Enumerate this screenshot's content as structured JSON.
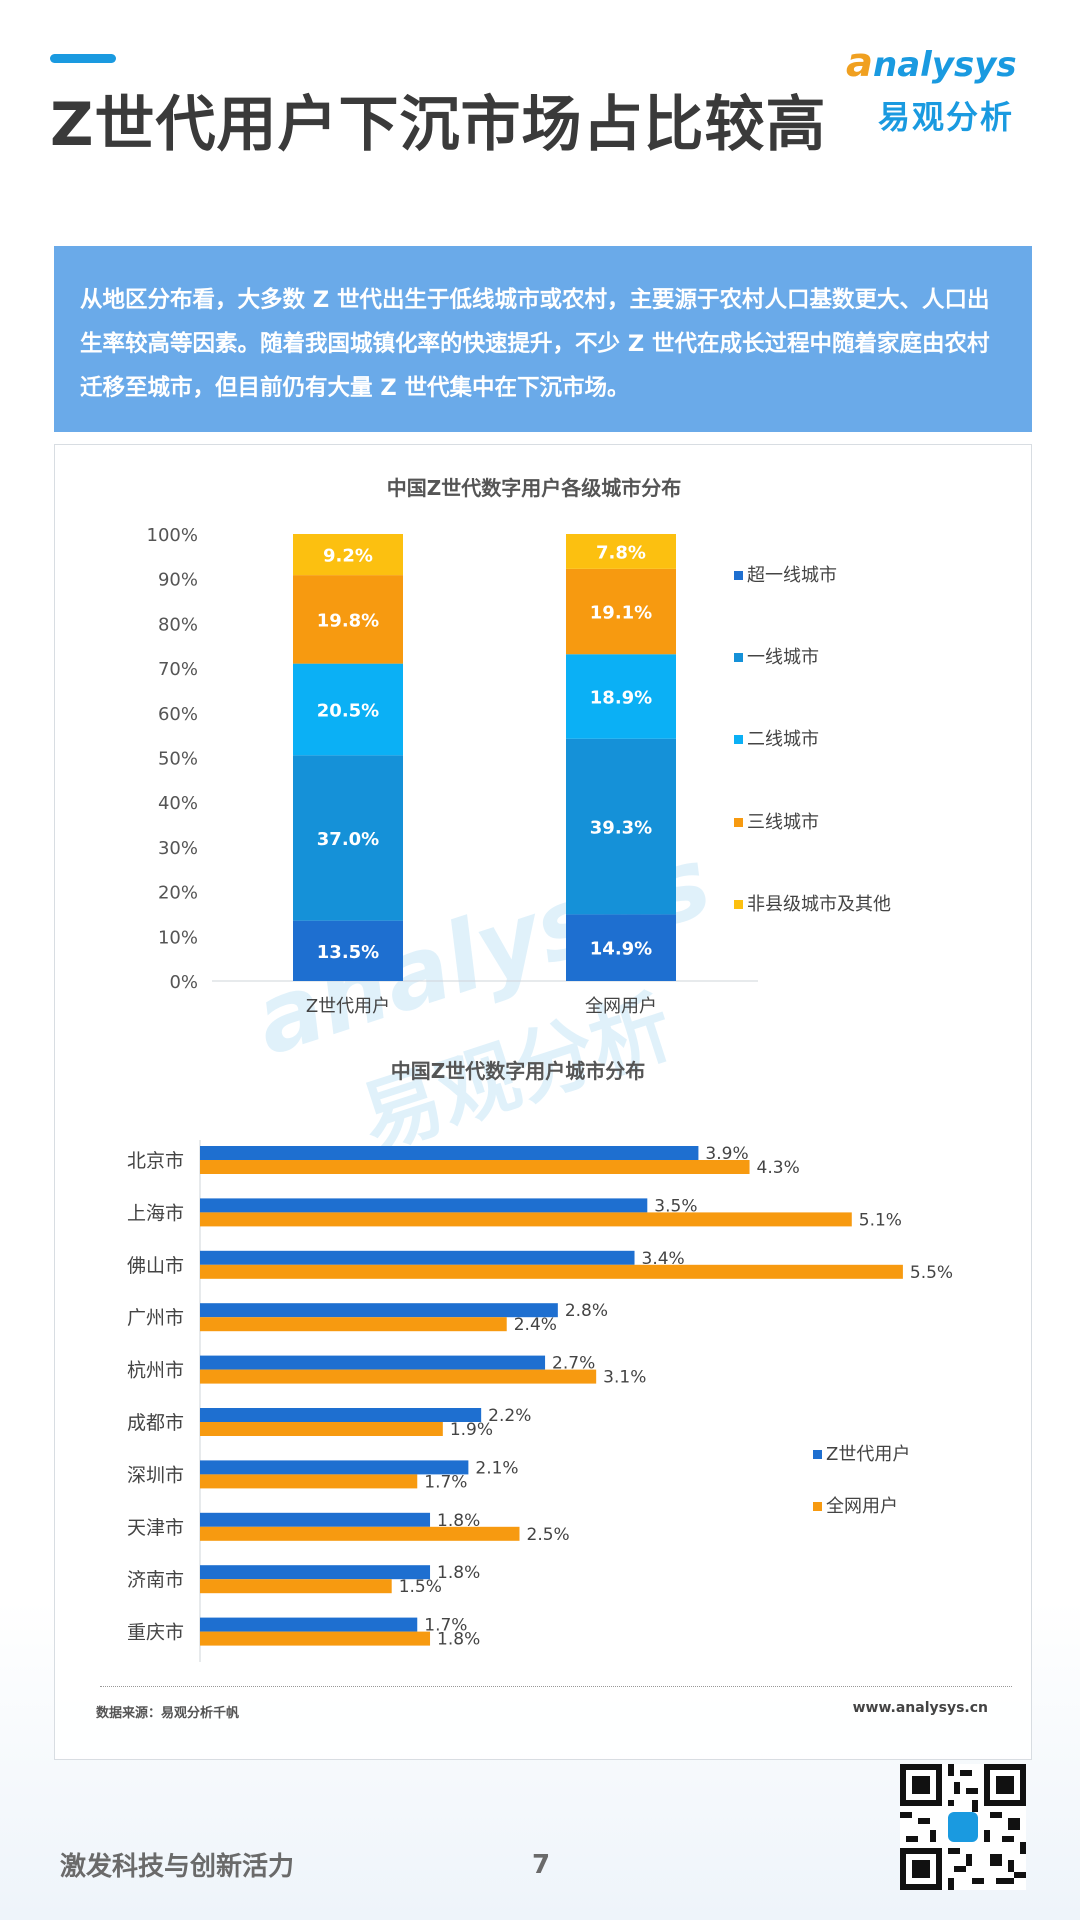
{
  "header": {
    "title": "Z世代用户下沉市场占比较高",
    "logo_en_lead": "a",
    "logo_en_rest": "nalysys",
    "logo_cn": "易观分析"
  },
  "intro": {
    "text": "从地区分布看，大多数 Z 世代出生于低线城市或农村，主要源于农村人口基数更大、人口出生率较高等因素。随着我国城镇化率的快速提升，不少 Z 世代在成长过程中随着家庭由农村迁移至城市，但目前仍有大量 Z 世代集中在下沉市场。"
  },
  "watermark": {
    "en": "analysys",
    "cn": "易观分析"
  },
  "colors": {
    "tier_super": "#1e6fd0",
    "tier_first": "#1591d8",
    "tier_second": "#0bb0f5",
    "tier_third": "#f79a10",
    "tier_other": "#fcc010",
    "genz": "#1e6fd0",
    "all": "#f79a10"
  },
  "chart_data": [
    {
      "type": "bar",
      "stacked": true,
      "title": "中国Z世代数字用户各级城市分布",
      "categories": [
        "Z世代用户",
        "全网用户"
      ],
      "series": [
        {
          "name": "超一线城市",
          "values": [
            13.5,
            14.9
          ]
        },
        {
          "name": "一线城市",
          "values": [
            37.0,
            39.3
          ]
        },
        {
          "name": "二线城市",
          "values": [
            20.5,
            18.9
          ]
        },
        {
          "name": "三线城市",
          "values": [
            19.8,
            19.1
          ]
        },
        {
          "name": "非县级城市及其他",
          "values": [
            9.2,
            7.8
          ]
        }
      ],
      "value_labels": [
        [
          "13.5%",
          "14.9%"
        ],
        [
          "37.0%",
          "39.3%"
        ],
        [
          "20.5%",
          "18.9%"
        ],
        [
          "19.8%",
          "19.1%"
        ],
        [
          "9.2%",
          "7.8%"
        ]
      ],
      "ylim": [
        0,
        100
      ],
      "yticks": [
        "0%",
        "10%",
        "20%",
        "30%",
        "40%",
        "50%",
        "60%",
        "70%",
        "80%",
        "90%",
        "100%"
      ],
      "legend_position": "right"
    },
    {
      "type": "bar",
      "orientation": "horizontal",
      "title": "中国Z世代数字用户城市分布",
      "categories": [
        "北京市",
        "上海市",
        "佛山市",
        "广州市",
        "杭州市",
        "成都市",
        "深圳市",
        "天津市",
        "济南市",
        "重庆市"
      ],
      "series": [
        {
          "name": "Z世代用户",
          "values": [
            3.9,
            3.5,
            3.4,
            2.8,
            2.7,
            2.2,
            2.1,
            1.8,
            1.8,
            1.7
          ]
        },
        {
          "name": "全网用户",
          "values": [
            4.3,
            5.1,
            5.5,
            2.4,
            3.1,
            1.9,
            1.7,
            2.5,
            1.5,
            1.8
          ]
        }
      ],
      "value_labels": [
        [
          "3.9%",
          "3.5%",
          "3.4%",
          "2.8%",
          "2.7%",
          "2.2%",
          "2.1%",
          "1.8%",
          "1.8%",
          "1.7%"
        ],
        [
          "4.3%",
          "5.1%",
          "5.5%",
          "2.4%",
          "3.1%",
          "1.9%",
          "1.7%",
          "2.5%",
          "1.5%",
          "1.8%"
        ]
      ],
      "legend_position": "right"
    }
  ],
  "footer": {
    "source": "数据来源：易观分析千帆",
    "website": "www.analysys.cn",
    "slogan": "激发科技与创新活力",
    "page_number": "7"
  }
}
